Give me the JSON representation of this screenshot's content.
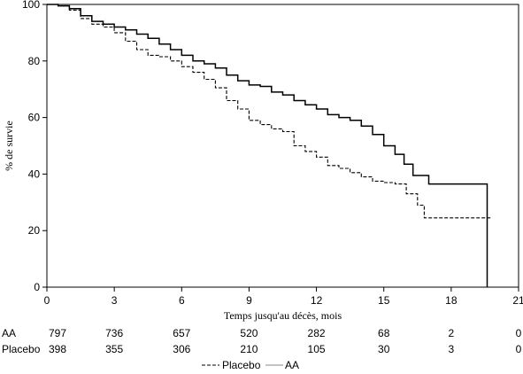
{
  "chart_data": {
    "type": "line",
    "chart_subtype": "kaplan-meier",
    "ylabel": "% de survie",
    "xlabel": "Temps jusqu'au décès, mois",
    "xlim": [
      0,
      21
    ],
    "ylim": [
      0,
      100
    ],
    "x_ticks": [
      "0",
      "3",
      "6",
      "9",
      "12",
      "15",
      "18",
      "21"
    ],
    "y_ticks": [
      "0",
      "20",
      "40",
      "60",
      "80",
      "100"
    ],
    "grid": false,
    "legend_position": "bottom-center",
    "series": [
      {
        "name": "Placebo",
        "line_style": "dashed",
        "color": "#000000",
        "x": [
          0,
          0.5,
          1,
          1.5,
          2,
          2.5,
          3,
          3.5,
          4,
          4.5,
          5,
          5.5,
          6,
          6.5,
          7,
          7.5,
          8,
          8.5,
          9,
          9.5,
          10,
          10.5,
          11,
          11.5,
          12,
          12.5,
          13,
          13.5,
          14,
          14.5,
          15,
          15.5,
          16,
          16.5,
          16.8,
          17.2,
          17.6,
          18,
          18.5,
          19,
          19.5,
          19.8
        ],
        "y": [
          100,
          99.5,
          98,
          95,
          93,
          92,
          90,
          87,
          84,
          82,
          81.5,
          80,
          78,
          76,
          73.5,
          70.5,
          66,
          63,
          59,
          57.5,
          56,
          55,
          50,
          48,
          46,
          43,
          42,
          40.5,
          39,
          37.5,
          37,
          36.5,
          33,
          29,
          24.5,
          24.5,
          24.5,
          24.5,
          24.5,
          24.5,
          24.5,
          24.5
        ]
      },
      {
        "name": "AA",
        "line_style": "solid",
        "color": "#000000",
        "x": [
          0,
          0.5,
          1,
          1.5,
          2,
          2.5,
          3,
          3.5,
          4,
          4.5,
          5,
          5.5,
          6,
          6.5,
          7,
          7.5,
          8,
          8.5,
          9,
          9.5,
          10,
          10.5,
          11,
          11.5,
          12,
          12.5,
          13,
          13.5,
          14,
          14.5,
          15,
          15.5,
          15.9,
          16.3,
          16.7,
          17,
          17.5,
          18,
          18.5,
          19,
          19.6,
          19.6
        ],
        "y": [
          100,
          99.5,
          98.5,
          96,
          94,
          93,
          92,
          91,
          89.5,
          88,
          86,
          84,
          82,
          80,
          79,
          77.5,
          75,
          73,
          71.5,
          71,
          69,
          68,
          66,
          64.5,
          63,
          61,
          60,
          59,
          57,
          54,
          50,
          47,
          43.5,
          39.5,
          39.5,
          36.5,
          36.5,
          36.5,
          36.5,
          36.5,
          36.5,
          0
        ]
      }
    ],
    "at_risk": {
      "times": [
        0,
        3,
        6,
        9,
        12,
        15,
        18,
        21
      ],
      "rows": [
        {
          "label": "AA",
          "values": [
            "797",
            "736",
            "657",
            "520",
            "282",
            "68",
            "2",
            "0"
          ]
        },
        {
          "label": "Placebo",
          "values": [
            "398",
            "355",
            "306",
            "210",
            "105",
            "30",
            "3",
            "0"
          ]
        }
      ]
    }
  }
}
